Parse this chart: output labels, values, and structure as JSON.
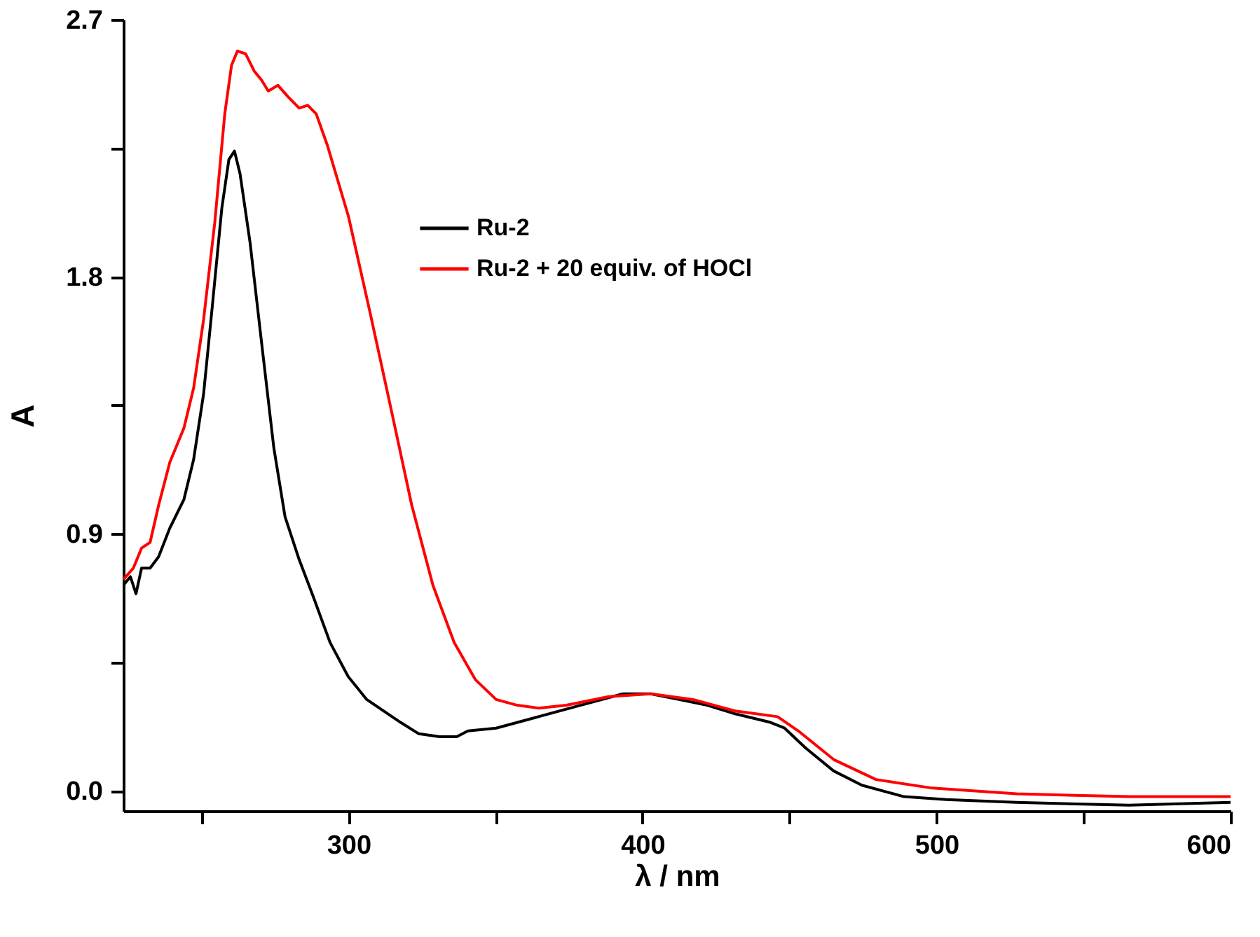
{
  "chart_data": {
    "type": "line",
    "xlabel": "λ / nm",
    "ylabel": "A",
    "xlim": [
      223.4,
      600
    ],
    "ylim": [
      -0.07,
      2.7
    ],
    "xticks": [
      {
        "value": 250,
        "label": null
      },
      300,
      {
        "value": 350,
        "label": null
      },
      400,
      {
        "value": 450,
        "label": null
      },
      500,
      {
        "value": 550,
        "label": null
      },
      600
    ],
    "yticks": [
      {
        "value": 0,
        "label": "0.0"
      },
      {
        "value": 0.45,
        "label": null
      },
      0.9,
      {
        "value": 1.35,
        "label": null
      },
      1.8,
      {
        "value": 2.25,
        "label": null
      },
      2.7
    ],
    "grid": false,
    "legend": "top",
    "marker": "none",
    "line_style": "solid",
    "series": [
      {
        "name": "Ru-2",
        "color": "#000000",
        "x": [
          223.4,
          225.8,
          227.7,
          229.6,
          232.5,
          235.4,
          239.2,
          244,
          247.3,
          250.7,
          253.5,
          256.9,
          259.3,
          261.2,
          263.1,
          266.5,
          270.3,
          274.6,
          278.4,
          283.2,
          288,
          293.7,
          299.9,
          306.2,
          311.9,
          317.7,
          323.9,
          331,
          336.8,
          340.6,
          350.2,
          364.6,
          378.9,
          393.3,
          402.8,
          412.4,
          422,
          431.5,
          443.5,
          448.3,
          455.5,
          465,
          474.6,
          488.9,
          503.3,
          527.2,
          565.5,
          600
        ],
        "values": [
          0.72,
          0.75,
          0.69,
          0.78,
          0.78,
          0.82,
          0.92,
          1.02,
          1.16,
          1.39,
          1.68,
          2.04,
          2.21,
          2.24,
          2.16,
          1.92,
          1.58,
          1.2,
          0.96,
          0.81,
          0.68,
          0.52,
          0.4,
          0.32,
          0.28,
          0.24,
          0.2,
          0.19,
          0.19,
          0.21,
          0.22,
          0.26,
          0.3,
          0.34,
          0.34,
          0.32,
          0.3,
          0.27,
          0.24,
          0.22,
          0.15,
          0.07,
          0.02,
          -0.02,
          -0.03,
          -0.04,
          -0.05,
          -0.04
        ]
      },
      {
        "name": "Ru-2 + 20 equiv. of HOCl",
        "color": "#ff0000",
        "x": [
          223.4,
          226.8,
          229.6,
          232.5,
          235.4,
          239.2,
          244,
          247.3,
          250.7,
          254.5,
          257.9,
          260.2,
          262.2,
          265,
          267.9,
          270.3,
          272.7,
          276,
          279.4,
          283.2,
          286.1,
          289,
          292.8,
          300,
          307.2,
          314.4,
          321.5,
          328.7,
          335.9,
          343.1,
          350.2,
          357.4,
          364.6,
          374.1,
          388.5,
          402.8,
          417.2,
          431.5,
          445.9,
          453,
          465,
          479.4,
          498.5,
          527.2,
          565.5,
          600
        ],
        "values": [
          0.74,
          0.78,
          0.85,
          0.87,
          1.0,
          1.15,
          1.27,
          1.41,
          1.65,
          1.99,
          2.37,
          2.54,
          2.59,
          2.58,
          2.52,
          2.49,
          2.45,
          2.47,
          2.43,
          2.39,
          2.4,
          2.37,
          2.26,
          2.01,
          1.68,
          1.34,
          1.0,
          0.72,
          0.52,
          0.39,
          0.32,
          0.3,
          0.29,
          0.3,
          0.33,
          0.34,
          0.32,
          0.28,
          0.26,
          0.21,
          0.11,
          0.04,
          0.01,
          -0.01,
          -0.02,
          -0.02
        ]
      }
    ]
  }
}
